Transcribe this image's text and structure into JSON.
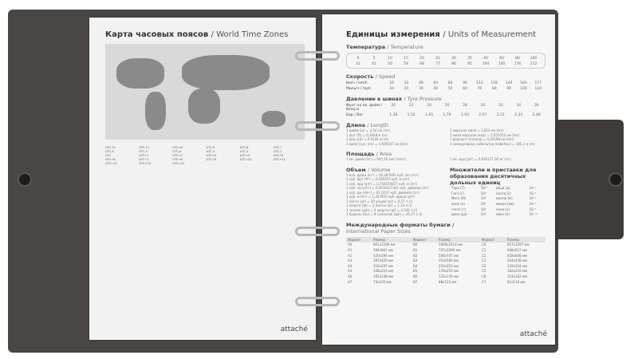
{
  "left_page": {
    "title_ru": "Карта часовых поясов",
    "title_en": "World Time Zones",
    "zones": [
      "UTC-12",
      "UTC-11",
      "UTC-10",
      "UTC-9",
      "UTC-8",
      "UTC-7",
      "UTC-6",
      "UTC-5",
      "UTC-4",
      "UTC-3",
      "UTC-2",
      "UTC-1",
      "UTC",
      "UTC+1",
      "UTC+2",
      "UTC+3",
      "UTC+4",
      "UTC+5",
      "UTC+6",
      "UTC+7",
      "UTC+8",
      "UTC+9",
      "UTC+10",
      "UTC+11",
      "UTC+12",
      "UTC+13",
      "UTC+14"
    ],
    "logo": "attaché"
  },
  "right_page": {
    "title_ru": "Единицы измерения",
    "title_en": "Units of Measurement",
    "temperature": {
      "ru": "Температура",
      "en": "Temperature",
      "c_label": "°C",
      "f_label": "°F",
      "c": [
        "0",
        "5",
        "10",
        "15",
        "20",
        "25",
        "30",
        "35",
        "40",
        "60",
        "80",
        "100"
      ],
      "f": [
        "32",
        "41",
        "50",
        "59",
        "68",
        "77",
        "86",
        "95",
        "104",
        "140",
        "176",
        "212"
      ]
    },
    "speed": {
      "ru": "Скорость",
      "en": "Speed",
      "kmh_label": "Км/ч / km/h",
      "mph_label": "Миль/ч / mph",
      "kmh": [
        "16",
        "32",
        "48",
        "64",
        "80",
        "96",
        "112",
        "128",
        "144",
        "160",
        "177"
      ],
      "mph": [
        "10",
        "20",
        "30",
        "40",
        "50",
        "60",
        "70",
        "80",
        "90",
        "100",
        "110"
      ]
    },
    "pressure": {
      "ru": "Давление в шинах",
      "en": "Tyre Pressure",
      "psi_label": "Фунт на кв. дюйм / lb/sq.in",
      "bar_label": "Бар / Bar",
      "psi": [
        "20",
        "22",
        "24",
        "26",
        "28",
        "30",
        "32",
        "34",
        "36"
      ],
      "bar": [
        "1.38",
        "1.52",
        "1.65",
        "1.79",
        "1.93",
        "2.07",
        "2.21",
        "2.34",
        "2.48"
      ]
    },
    "length": {
      "ru": "Длина",
      "en": "Length",
      "left": [
        "1 дюйм (in) = 2,54 см (cm)",
        "1 фут (ft) = 0,3048 м (m)",
        "1 ярд (yd) = 0,9144 м (m)",
        "1 миля (сух. (mi) = 1,609347 км (km)"
      ],
      "right": [
        "1 морская миля = 1,852 км (km)",
        "1 миля морская (кад) = 5,555552 км (km)",
        "1 фарлонг (furlong) = 0,20168 км (km)",
        "1 международ. кабельтов (kabeltov) = 185,2 м (m)"
      ]
    },
    "area": {
      "ru": "Площадь",
      "en": "Area",
      "left": "1 кв. дюйм (in²) = 645,16 мм² (mm²)",
      "right": "1 кв. ярд (yd²) = 0,836127 36 м² (m²)"
    },
    "volume": {
      "ru": "Объем",
      "en": "Volume",
      "lines": [
        "1 куб. дюйм (in³) = 16,387064 куб. см (cm³)",
        "1 куб. фут (ft³) = 0,028316 куб. м (m³)",
        "1 куб. ярд (yd³) = 0,764554857 куб. м (m³)",
        "1 куб. см (cm³) = 0,0610237441 куб. дюймов (in³)",
        "1 куб. дм (dm³) = 61,0237 куб. дюймов (in³)",
        "1 куб. м (m³) = 1,307950 куб. ярдов (yd³)",
        "1 пинта (pt) = 20 унций (oz) = 0,57 л (l)",
        "1 кварта (qt) = 2 пинты (pt) = 1,14 л (l)",
        "1 галлон (gal) = 4 кварты (qt) = 4,546 л (l)",
        "1 бушель (bu) = 8 галлонов (gal) = 36,37 л (l)"
      ]
    },
    "prefixes": {
      "title": "Множители и приставки для образования десятичных дольных единиц",
      "rows": [
        [
          "Тера (T)",
          "10¹²",
          "деци (д)",
          "10⁻¹"
        ],
        [
          "Гига (Г)",
          "10⁹",
          "санти (с)",
          "10⁻²"
        ],
        [
          "Мега (М)",
          "10⁶",
          "милли (м)",
          "10⁻³"
        ],
        [
          "кило (к)",
          "10³",
          "микро (мк)",
          "10⁻⁶"
        ],
        [
          "гекто (г)",
          "10²",
          "нано (н)",
          "10⁻⁹"
        ],
        [
          "дека (да)",
          "10¹",
          "пико (п)",
          "10⁻¹²"
        ]
      ]
    },
    "paper": {
      "ru": "Международные форматы бумаги",
      "en": "International Paper Sizes",
      "headers": [
        "Формат",
        "Размер",
        "Формат",
        "Размер",
        "Формат",
        "Размер"
      ],
      "rows": [
        [
          "A0",
          "841x1189 мм",
          "B0",
          "1000x1414 мм",
          "C0",
          "917x1297 мм"
        ],
        [
          "A1",
          "594x841 мм",
          "B1",
          "707x1000 мм",
          "C1",
          "648x917 мм"
        ],
        [
          "A2",
          "420x594 мм",
          "B2",
          "500x707 мм",
          "C2",
          "458x648 мм"
        ],
        [
          "A3",
          "297x420 мм",
          "B3",
          "353x500 мм",
          "C3",
          "324x458 мм"
        ],
        [
          "A4",
          "210x297 мм",
          "B4",
          "250x353 мм",
          "C4",
          "229x324 мм"
        ],
        [
          "A5",
          "148x210 мм",
          "B5",
          "176x250 мм",
          "C5",
          "162x229 мм"
        ],
        [
          "A6",
          "105x148 мм",
          "B6",
          "125x176 мм",
          "C6",
          "114x162 мм"
        ],
        [
          "A7",
          "74x105 мм",
          "B7",
          "88x125 мм",
          "C7",
          "81x114 мм"
        ]
      ]
    },
    "logo": "attaché"
  }
}
